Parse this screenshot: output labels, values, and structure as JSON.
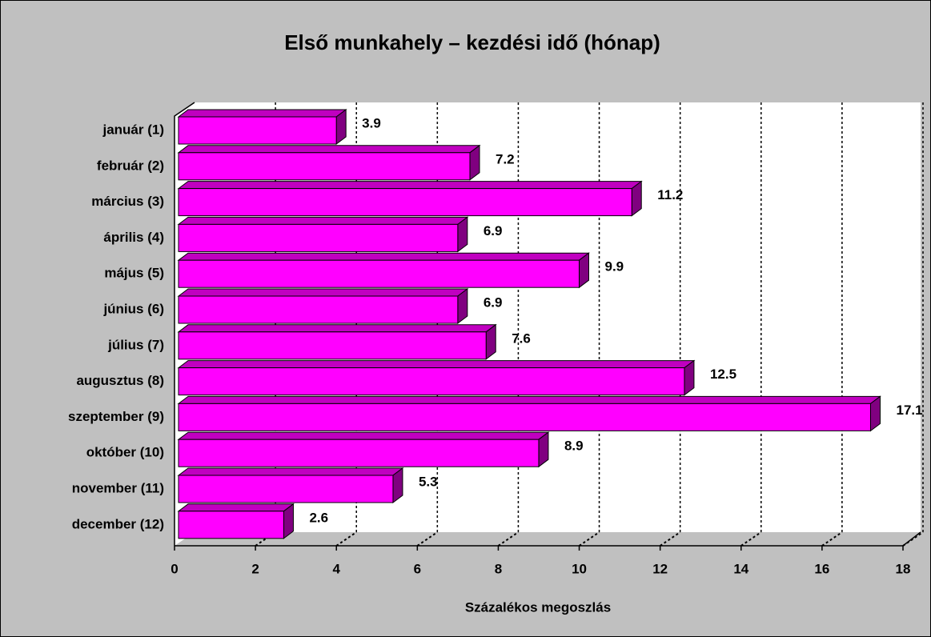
{
  "chart_data": {
    "type": "bar3d_horizontal",
    "title": "Első munkahely – kezdési idő (hónap)",
    "x_label": "Százalékos megoszlás",
    "categories": [
      "január (1)",
      "február (2)",
      "március (3)",
      "április (4)",
      "május (5)",
      "június (6)",
      "július (7)",
      "augusztus (8)",
      "szeptember (9)",
      "október (10)",
      "november (11)",
      "december (12)"
    ],
    "values": [
      3.9,
      7.2,
      11.2,
      6.9,
      9.9,
      6.9,
      7.6,
      12.5,
      17.1,
      8.9,
      5.3,
      2.6
    ],
    "color": "#ff00ff",
    "xlim": [
      0,
      18
    ],
    "xticks": [
      0,
      2,
      4,
      6,
      8,
      10,
      12,
      14,
      16,
      18
    ],
    "grid": true
  }
}
